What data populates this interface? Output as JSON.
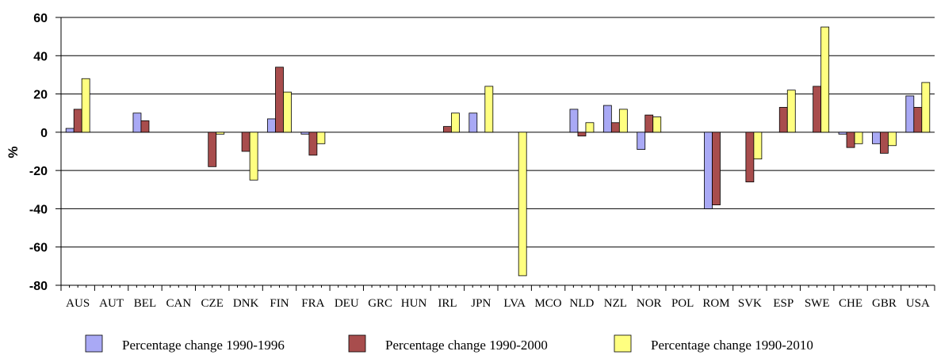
{
  "chart_data": {
    "type": "bar",
    "ylabel": "%",
    "ylim": [
      -80,
      60
    ],
    "yticks": [
      60,
      40,
      20,
      0,
      -20,
      -40,
      -60,
      -80
    ],
    "grid": true,
    "legend_position": "bottom",
    "categories": [
      "AUS",
      "AUT",
      "BEL",
      "CAN",
      "CZE",
      "DNK",
      "FIN",
      "FRA",
      "DEU",
      "GRC",
      "HUN",
      "IRL",
      "JPN",
      "LVA",
      "MCO",
      "NLD",
      "NZL",
      "NOR",
      "POL",
      "ROM",
      "SVK",
      "ESP",
      "SWE",
      "CHE",
      "GBR",
      "USA"
    ],
    "series": [
      {
        "name": "Percentage change 1990-1996",
        "color": "#A9A9F5",
        "values": [
          2,
          null,
          10,
          null,
          null,
          null,
          7,
          -1,
          null,
          null,
          null,
          null,
          10,
          null,
          null,
          12,
          14,
          -9,
          null,
          -40,
          null,
          null,
          null,
          -1,
          -6,
          19
        ]
      },
      {
        "name": "Percentage change 1990-2000",
        "color": "#A84D4D",
        "values": [
          12,
          null,
          6,
          null,
          -18,
          -10,
          34,
          -12,
          null,
          null,
          null,
          3,
          null,
          null,
          null,
          -2,
          5,
          9,
          null,
          -38,
          -26,
          13,
          24,
          -8,
          -11,
          13
        ]
      },
      {
        "name": "Percentage change 1990-2010",
        "color": "#FFFF80",
        "values": [
          28,
          null,
          null,
          null,
          -1,
          -25,
          21,
          -6,
          null,
          null,
          null,
          10,
          24,
          -75,
          null,
          5,
          12,
          8,
          null,
          null,
          -14,
          22,
          55,
          -6,
          -7,
          26
        ]
      }
    ]
  }
}
